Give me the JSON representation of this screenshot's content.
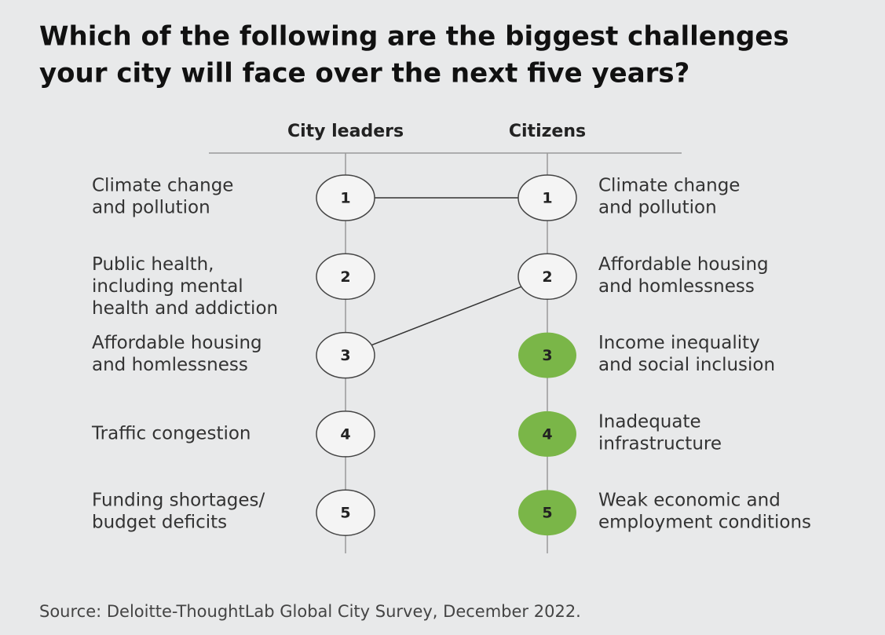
{
  "title": [
    "Which of the following are the biggest challenges",
    "your city will face over the next five years?"
  ],
  "columns": [
    {
      "header": "City leaders",
      "items": [
        {
          "rank": "1",
          "lines": [
            "Climate change",
            "and pollution"
          ]
        },
        {
          "rank": "2",
          "lines": [
            "Public health,",
            "including mental",
            "health and addiction"
          ]
        },
        {
          "rank": "3",
          "lines": [
            "Affordable housing",
            "and homlessness"
          ]
        },
        {
          "rank": "4",
          "lines": [
            "Traffic congestion"
          ]
        },
        {
          "rank": "5",
          "lines": [
            "Funding shortages/",
            "budget deficits"
          ]
        }
      ]
    },
    {
      "header": "Citizens",
      "items": [
        {
          "rank": "1",
          "lines": [
            "Climate change",
            "and pollution"
          ]
        },
        {
          "rank": "2",
          "lines": [
            "Affordable housing",
            "and homlessness"
          ]
        },
        {
          "rank": "3",
          "lines": [
            "Income inequality",
            "and social inclusion"
          ],
          "highlight": true
        },
        {
          "rank": "4",
          "lines": [
            "Inadequate",
            "infrastructure"
          ],
          "highlight": true
        },
        {
          "rank": "5",
          "lines": [
            "Weak economic and",
            "employment conditions"
          ],
          "highlight": true
        }
      ]
    }
  ],
  "links": [
    [
      0,
      0
    ],
    [
      2,
      1
    ]
  ],
  "highlight_color": "#7ab648",
  "source": "Source: Deloitte-ThoughtLab Global City Survey, December 2022."
}
